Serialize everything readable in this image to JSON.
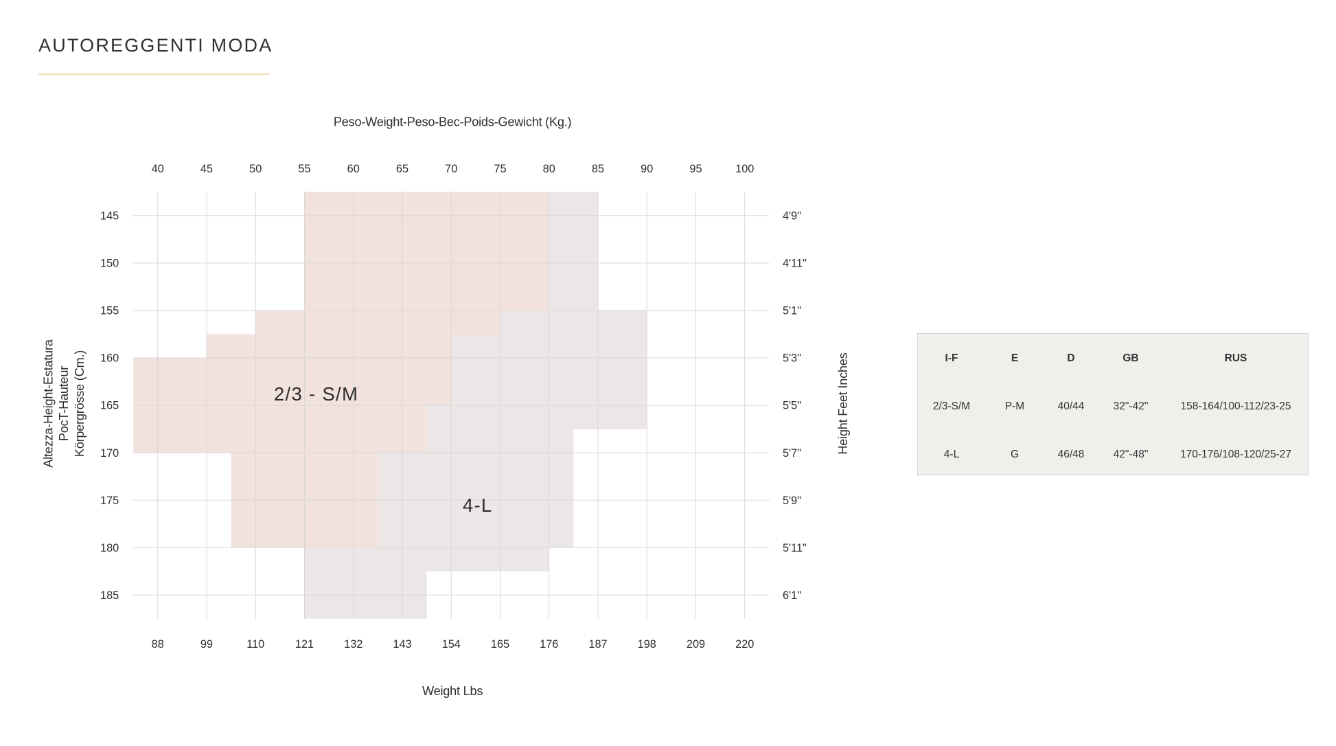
{
  "title": "AUTOREGGENTI MODA",
  "colors": {
    "accent_underline": "#eedcb1",
    "region_small_medium": "#f2e2dd",
    "region_large": "#ece7e6",
    "grid": "#d8d8d8",
    "table_bg": "#f0efec"
  },
  "chart_data": {
    "type": "area",
    "x_top_label": "Peso-Weight-Peso-Bec-Poids-Gewicht (Kg.)",
    "x_top_ticks": [
      40,
      45,
      50,
      55,
      60,
      65,
      70,
      75,
      80,
      85,
      90,
      95,
      100
    ],
    "x_bottom_label": "Weight Lbs",
    "x_bottom_ticks": [
      "88",
      "99",
      "110",
      "121",
      "132",
      "143",
      "154",
      "165",
      "176",
      "187",
      "198",
      "209",
      "220"
    ],
    "y_left_label": [
      "Altezza-Height-Estatura",
      "PocT-Hauteur",
      "Körpergrösse (Cm.)"
    ],
    "y_left_ticks": [
      145,
      150,
      155,
      160,
      165,
      170,
      175,
      180,
      185
    ],
    "y_right_label": "Height Feet Inches",
    "y_right_ticks": [
      "4'9\"",
      "4'11\"",
      "5'1\"",
      "5'3\"",
      "5'5\"",
      "5'7\"",
      "5'9\"",
      "5'11\"",
      "6'1\""
    ],
    "xlim": [
      37.5,
      102.5
    ],
    "ylim": [
      142.5,
      187.5
    ],
    "grid": true,
    "regions": [
      {
        "id": "small-medium",
        "name": "2/3 - S/M",
        "color": "#f2e2dd",
        "polygon": [
          [
            55,
            142.5
          ],
          [
            80,
            142.5
          ],
          [
            80,
            155
          ],
          [
            75,
            155
          ],
          [
            75,
            157.5
          ],
          [
            70,
            157.5
          ],
          [
            70,
            165
          ],
          [
            67.5,
            165
          ],
          [
            67.5,
            170
          ],
          [
            62.5,
            170
          ],
          [
            62.5,
            180
          ],
          [
            47.5,
            180
          ],
          [
            47.5,
            170
          ],
          [
            37.5,
            170
          ],
          [
            37.5,
            160
          ],
          [
            45,
            160
          ],
          [
            45,
            157.5
          ],
          [
            50,
            157.5
          ],
          [
            50,
            155
          ],
          [
            55,
            155
          ]
        ]
      },
      {
        "id": "large",
        "name": "4-L",
        "color": "#ece7e6",
        "polygon": [
          [
            55,
            142.5
          ],
          [
            85,
            142.5
          ],
          [
            85,
            155
          ],
          [
            90,
            155
          ],
          [
            90,
            167.5
          ],
          [
            82.5,
            167.5
          ],
          [
            82.5,
            180
          ],
          [
            80,
            180
          ],
          [
            80,
            182.5
          ],
          [
            67.5,
            182.5
          ],
          [
            67.5,
            187.5
          ],
          [
            55,
            187.5
          ]
        ]
      }
    ]
  },
  "size_table": {
    "headers": [
      "I-F",
      "E",
      "D",
      "GB",
      "RUS"
    ],
    "rows": [
      [
        "2/3-S/M",
        "P-M",
        "40/44",
        "32\"-42\"",
        "158-164/100-112/23-25"
      ],
      [
        "4-L",
        "G",
        "46/48",
        "42\"-48\"",
        "170-176/108-120/25-27"
      ]
    ]
  }
}
